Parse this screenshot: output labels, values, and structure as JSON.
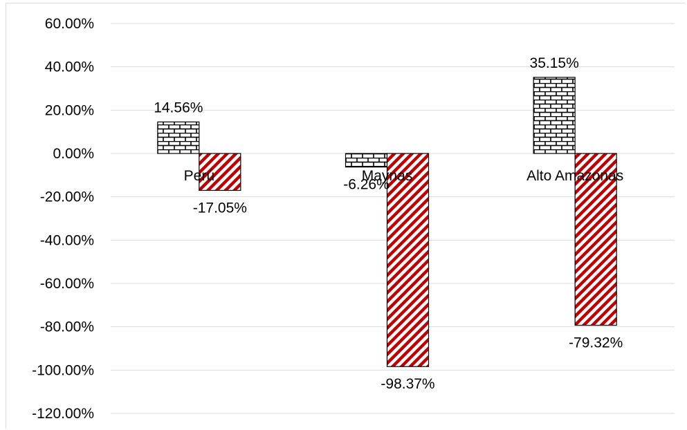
{
  "chart_data": {
    "type": "bar",
    "categories": [
      "Perú",
      "Maynas",
      "Alto Amazonas"
    ],
    "series": [
      {
        "values": [
          14.56,
          -6.26,
          35.15
        ],
        "pattern": "brick",
        "color": "#000000"
      },
      {
        "values": [
          -17.05,
          -98.37,
          -79.32
        ],
        "pattern": "diagonal-stripes",
        "color": "#c00000"
      }
    ],
    "data_labels": [
      [
        "14.56%",
        "-6.26%",
        "35.15%"
      ],
      [
        "-17.05%",
        "-98.37%",
        "-79.32%"
      ]
    ],
    "y_ticks": [
      60,
      40,
      20,
      0,
      -20,
      -40,
      -60,
      -80,
      -100,
      -120
    ],
    "y_tick_labels": [
      "60.00%",
      "40.00%",
      "20.00%",
      "0.00%",
      "-20.00%",
      "-40.00%",
      "-60.00%",
      "-80.00%",
      "-100.00%",
      "-120.00%"
    ],
    "ylim": [
      -120,
      60
    ],
    "grid": true,
    "legend": "none",
    "title": "",
    "xlabel": "",
    "ylabel": ""
  }
}
